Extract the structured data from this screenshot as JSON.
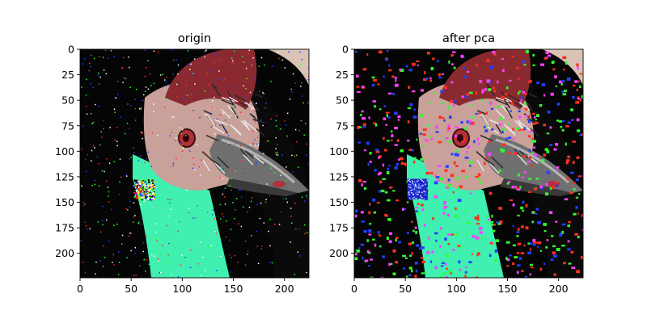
{
  "chart_data": [
    {
      "type": "image",
      "title": "origin",
      "xlim": [
        0,
        224
      ],
      "ylim": [
        224,
        0
      ],
      "xticks": [
        0,
        50,
        100,
        150,
        200
      ],
      "yticks": [
        0,
        25,
        50,
        75,
        100,
        125,
        150,
        175,
        200
      ],
      "noise_colors": [
        "#ff3020",
        "#30ff30",
        "#2040ff",
        "#ffffff"
      ],
      "noise_density": "sparse",
      "patch": {
        "x0": 52,
        "y0": 127,
        "x1": 72,
        "y1": 147,
        "style": "mixed colored pixel noise"
      }
    },
    {
      "type": "image",
      "title": "after pca",
      "xlim": [
        0,
        224
      ],
      "ylim": [
        224,
        0
      ],
      "xticks": [
        0,
        50,
        100,
        150,
        200
      ],
      "yticks": [
        0,
        25,
        50,
        75,
        100,
        125,
        150,
        175,
        200
      ],
      "noise_colors": [
        "#ff3020",
        "#30ff30",
        "#2040ff",
        "#ff40ff"
      ],
      "noise_density": "dense",
      "patch": {
        "x0": 52,
        "y0": 127,
        "x1": 72,
        "y1": 147,
        "style": "solid blue block"
      }
    }
  ],
  "colors": {
    "background": "#050505",
    "head_pink": "#c9a09a",
    "crest_red": "#8a2a30",
    "neck_cyan": "#3ff0b0",
    "beak_gray": "#707070",
    "eye_red": "#b0303a"
  }
}
